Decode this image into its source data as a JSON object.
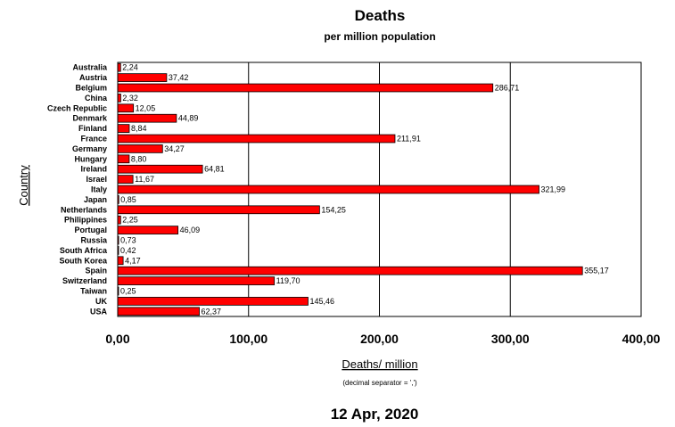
{
  "chart_data": {
    "type": "bar",
    "orientation": "horizontal",
    "title": "Deaths",
    "subtitle": "per million population",
    "xlabel": "Deaths/ million",
    "ylabel": "Country",
    "note": "(decimal separator = ',')",
    "date": "12 Apr, 2020",
    "xlim": [
      0,
      400
    ],
    "xticks": [
      0,
      100,
      200,
      300,
      400
    ],
    "xtick_labels": [
      "0,00",
      "100,00",
      "200,00",
      "300,00",
      "400,00"
    ],
    "grid": "vertical",
    "bar_color": "#ff0000",
    "categories": [
      "Australia",
      "Austria",
      "Belgium",
      "China",
      "Czech Republic",
      "Denmark",
      "Finland",
      "France",
      "Germany",
      "Hungary",
      "Ireland",
      "Israel",
      "Italy",
      "Japan",
      "Netherlands",
      "Philippines",
      "Portugal",
      "Russia",
      "South Africa",
      "South Korea",
      "Spain",
      "Switzerland",
      "Taiwan",
      "UK",
      "USA"
    ],
    "values": [
      2.24,
      37.42,
      286.71,
      2.32,
      12.05,
      44.89,
      8.84,
      211.91,
      34.27,
      8.8,
      64.81,
      11.67,
      321.99,
      0.85,
      154.25,
      2.25,
      46.09,
      0.73,
      0.42,
      4.17,
      355.17,
      119.7,
      0.25,
      145.46,
      62.37
    ],
    "value_labels": [
      "2,24",
      "37,42",
      "286,71",
      "2,32",
      "12,05",
      "44,89",
      "8,84",
      "211,91",
      "34,27",
      "8,80",
      "64,81",
      "11,67",
      "321,99",
      "0,85",
      "154,25",
      "2,25",
      "46,09",
      "0,73",
      "0,42",
      "4,17",
      "355,17",
      "119,70",
      "0,25",
      "145,46",
      "62,37"
    ]
  }
}
